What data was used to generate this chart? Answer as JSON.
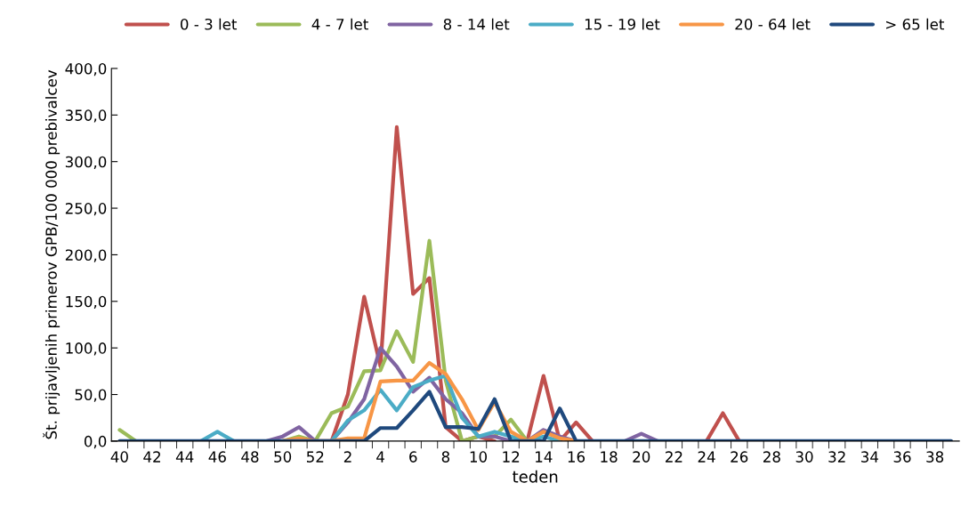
{
  "chart_data": {
    "type": "line",
    "xlabel": "teden",
    "ylabel": "Št. prijavljenih primerov GPB/100 000 prebivalcev",
    "categories": [
      "40",
      null,
      "42",
      null,
      "44",
      null,
      "46",
      null,
      "48",
      null,
      "50",
      null,
      "52",
      null,
      "2",
      null,
      "4",
      null,
      "6",
      null,
      "8",
      null,
      "10",
      null,
      "12",
      null,
      "14",
      null,
      "16",
      null,
      "18",
      null,
      "20",
      null,
      "22",
      null,
      "24",
      null,
      "26",
      null,
      "28",
      null,
      "30",
      null,
      "32",
      null,
      "34",
      null,
      "36",
      null,
      "38",
      null
    ],
    "series": [
      {
        "name": "0 - 3 let",
        "color": "#c0504d",
        "values": [
          null,
          null,
          null,
          null,
          null,
          null,
          null,
          null,
          null,
          null,
          null,
          null,
          null,
          0,
          50,
          155,
          80,
          337,
          158,
          175,
          15,
          0,
          5,
          0,
          null,
          0,
          70,
          0,
          20,
          0,
          null,
          null,
          null,
          null,
          null,
          null,
          0,
          30,
          0,
          null,
          null,
          null,
          null,
          null,
          null,
          null,
          null,
          null,
          null,
          null,
          null,
          null
        ]
      },
      {
        "name": "4 - 7 let",
        "color": "#9bbb59",
        "values": [
          12,
          0,
          null,
          null,
          null,
          null,
          null,
          null,
          null,
          null,
          0,
          5,
          0,
          30,
          37,
          75,
          76,
          118,
          85,
          215,
          65,
          0,
          5,
          5,
          23,
          0,
          null,
          null,
          null,
          null,
          null,
          null,
          null,
          null,
          null,
          null,
          null,
          null,
          null,
          null,
          null,
          null,
          null,
          null,
          null,
          null,
          null,
          null,
          null,
          null,
          null,
          null
        ]
      },
      {
        "name": "8 - 14 let",
        "color": "#8064a2",
        "values": [
          null,
          null,
          null,
          null,
          null,
          null,
          null,
          null,
          null,
          0,
          5,
          15,
          0,
          0,
          20,
          45,
          100,
          80,
          53,
          68,
          45,
          30,
          5,
          5,
          0,
          0,
          12,
          5,
          0,
          null,
          null,
          0,
          8,
          0,
          null,
          null,
          null,
          null,
          null,
          null,
          null,
          null,
          null,
          null,
          null,
          null,
          null,
          null,
          null,
          null,
          null,
          null
        ]
      },
      {
        "name": "15 - 19 let",
        "color": "#4bacc6",
        "values": [
          null,
          null,
          null,
          null,
          null,
          0,
          10,
          0,
          null,
          null,
          null,
          null,
          null,
          0,
          22,
          33,
          55,
          33,
          58,
          65,
          70,
          25,
          5,
          10,
          5,
          0,
          5,
          0,
          null,
          null,
          null,
          null,
          null,
          null,
          null,
          null,
          null,
          null,
          null,
          null,
          null,
          null,
          null,
          null,
          null,
          null,
          null,
          null,
          null,
          null,
          null,
          null
        ]
      },
      {
        "name": "20 - 64 let",
        "color": "#f79646",
        "values": [
          null,
          null,
          null,
          null,
          null,
          null,
          null,
          null,
          null,
          null,
          0,
          3,
          0,
          0,
          3,
          3,
          64,
          65,
          65,
          84,
          72,
          45,
          12,
          42,
          10,
          0,
          10,
          3,
          0,
          null,
          null,
          null,
          null,
          null,
          null,
          null,
          null,
          null,
          null,
          null,
          null,
          null,
          null,
          null,
          null,
          null,
          null,
          null,
          null,
          null,
          null,
          null
        ]
      },
      {
        "name": "> 65 let",
        "color": "#1f497d",
        "values": [
          0,
          0,
          0,
          0,
          0,
          0,
          0,
          0,
          0,
          0,
          0,
          0,
          0,
          0,
          0,
          0,
          14,
          14,
          33,
          53,
          15,
          15,
          13,
          45,
          0,
          0,
          0,
          35,
          0,
          0,
          0,
          0,
          0,
          0,
          0,
          0,
          0,
          0,
          0,
          0,
          0,
          0,
          0,
          0,
          0,
          0,
          0,
          0,
          0,
          0,
          0,
          0
        ]
      }
    ],
    "ylim": [
      0,
      400
    ],
    "yticks": [
      {
        "value": 0,
        "label": "0,0"
      },
      {
        "value": 50,
        "label": "50,0"
      },
      {
        "value": 100,
        "label": "100,0"
      },
      {
        "value": 150,
        "label": "150,0"
      },
      {
        "value": 200,
        "label": "200,0"
      },
      {
        "value": 250,
        "label": "250,0"
      },
      {
        "value": 300,
        "label": "300,0"
      },
      {
        "value": 350,
        "label": "350,0"
      },
      {
        "value": 400,
        "label": "400,0"
      }
    ],
    "grid": false,
    "legend": "top",
    "marker": "none",
    "line_style": "solid"
  }
}
